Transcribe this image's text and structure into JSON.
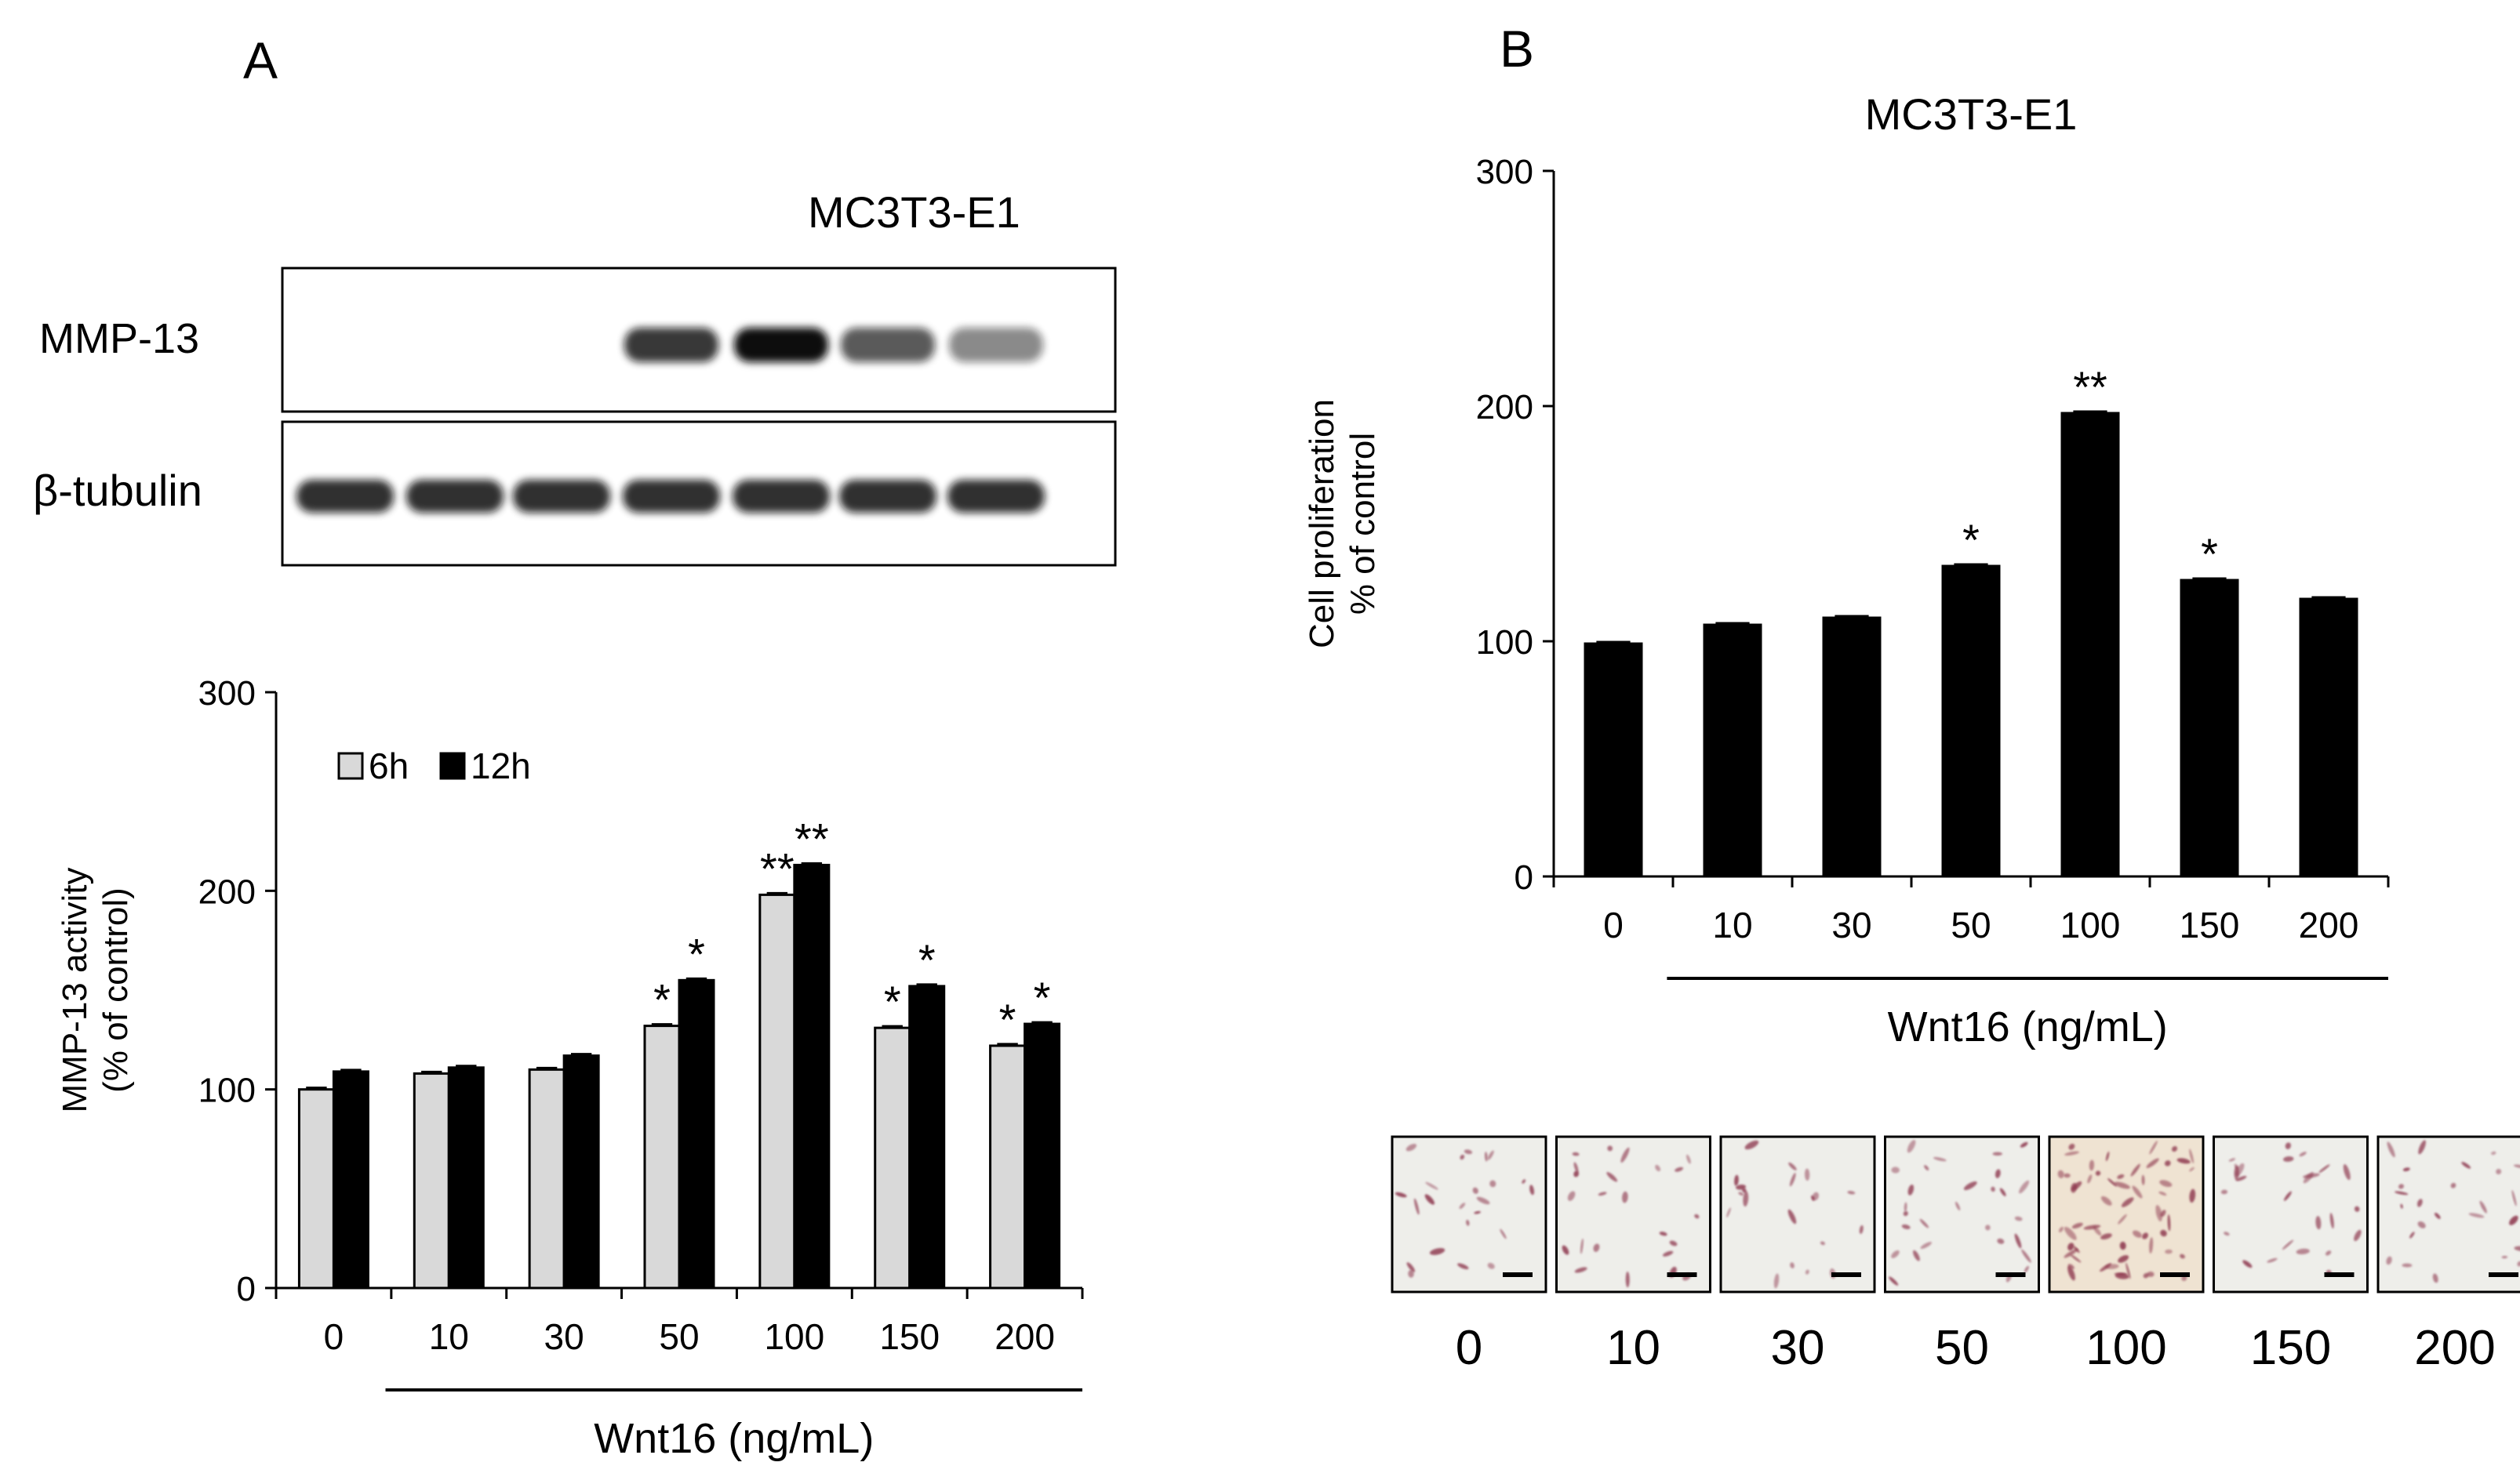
{
  "panels": {
    "a": {
      "letter": "A",
      "cell_line": "MC3T3-E1",
      "blot_labels": [
        "MMP-13",
        "β-tubulin"
      ],
      "blot_intensity": {
        "mmp13": [
          0,
          0,
          0,
          0.82,
          1.0,
          0.68,
          0.48
        ],
        "tubulin": [
          0.85,
          0.85,
          0.85,
          0.85,
          0.85,
          0.85,
          0.85
        ]
      },
      "x_title": "Wnt16 (ng/mL)"
    },
    "b": {
      "letter": "B",
      "cell_line": "MC3T3-E1",
      "x_title": "Wnt16 (ng/mL)",
      "image_labels": [
        "0",
        "10",
        "30",
        "50",
        "100",
        "150",
        "200"
      ],
      "cell_density": [
        0.25,
        0.25,
        0.2,
        0.35,
        1.0,
        0.3,
        0.3
      ]
    }
  },
  "chart_data": [
    {
      "type": "bar",
      "categories": [
        "0",
        "10",
        "30",
        "50",
        "100",
        "150",
        "200"
      ],
      "series": [
        {
          "name": "6h",
          "values": [
            100,
            108,
            110,
            132,
            198,
            131,
            122
          ],
          "color": "#d9d9d9"
        },
        {
          "name": "12h",
          "values": [
            109,
            111,
            117,
            155,
            213,
            152,
            133
          ],
          "color": "#000000"
        }
      ],
      "annotations": {
        "6h": [
          "",
          "",
          "",
          "*",
          "**",
          "*",
          "*"
        ],
        "12h": [
          "",
          "",
          "",
          "*",
          "**",
          "*",
          "*"
        ]
      },
      "xlabel": "Wnt16 (ng/mL)",
      "ylabel": "MMP-13 activity",
      "ylabel_line2": "(% of control)",
      "ylim": [
        0,
        300
      ],
      "yticks": [
        0,
        100,
        200,
        300
      ],
      "legend": "top-left",
      "grid": false
    },
    {
      "type": "bar",
      "categories": [
        "0",
        "10",
        "30",
        "50",
        "100",
        "150",
        "200"
      ],
      "series": [
        {
          "values": [
            99,
            107,
            110,
            132,
            197,
            126,
            118
          ],
          "color": "#000000"
        }
      ],
      "annotations": [
        "",
        "",
        "",
        "*",
        "**",
        "*",
        ""
      ],
      "title": "MC3T3-E1",
      "xlabel": "Wnt16 (ng/mL)",
      "ylabel": "Cell proliferation",
      "ylabel_line2": "% of control",
      "ylim": [
        0,
        300
      ],
      "yticks": [
        0,
        100,
        200,
        300
      ],
      "grid": false
    }
  ]
}
